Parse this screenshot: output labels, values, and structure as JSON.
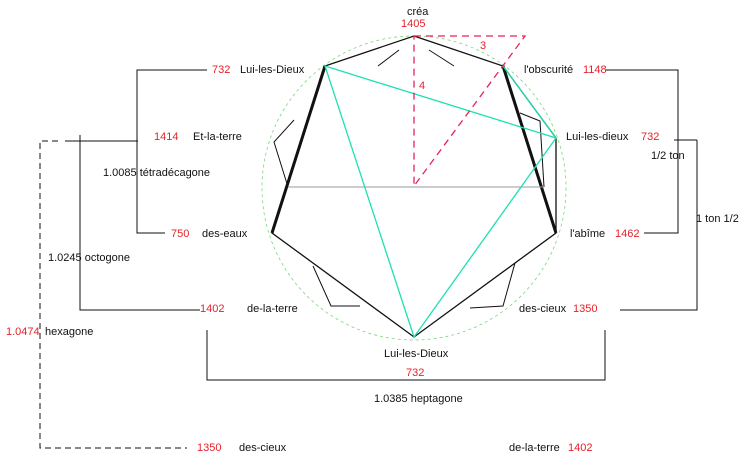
{
  "colors": {
    "black": "#111111",
    "red": "#e8202a",
    "cyan": "#1ee0b0",
    "green_dash": "#7ad67a",
    "gray": "#9a9a9a",
    "pink_dash": "#e8205a"
  },
  "top": {
    "label": "créa",
    "value": "1405"
  },
  "left": {
    "n732": "732",
    "lui_les_dieux": "Lui-les-Dieux",
    "n1414": "1414",
    "et_la_terre": "Et-la-terre",
    "tetradecagone": "1.0085 tétradécagone",
    "n750": "750",
    "des_eaux": "des-eaux",
    "octogone": "1.0245 octogone",
    "n1402": "1402",
    "de_la_terre": "de-la-terre",
    "n1474": "1.0474",
    "hexagone": "hexagone"
  },
  "right": {
    "obscurite": "l'obscurité",
    "n1148": "1148",
    "lui_les_dieux": "Lui-les-dieux",
    "n732": "732",
    "demi_ton": "1/2 ton",
    "ton_un_demi": "1 ton 1/2",
    "abime": "l'abîme",
    "n1462": "1462",
    "des_cieux": "des-cieux",
    "n1350": "1350"
  },
  "bottom": {
    "lui_les_dieux": "Lui-les-Dieux",
    "n732": "732",
    "heptagone": "1.0385 heptagone",
    "n1350": "1350",
    "des_cieux": "des-cieux",
    "de_la_terre": "de-la-terre",
    "n1402": "1402"
  },
  "triangle": {
    "three": "3",
    "four": "4"
  }
}
